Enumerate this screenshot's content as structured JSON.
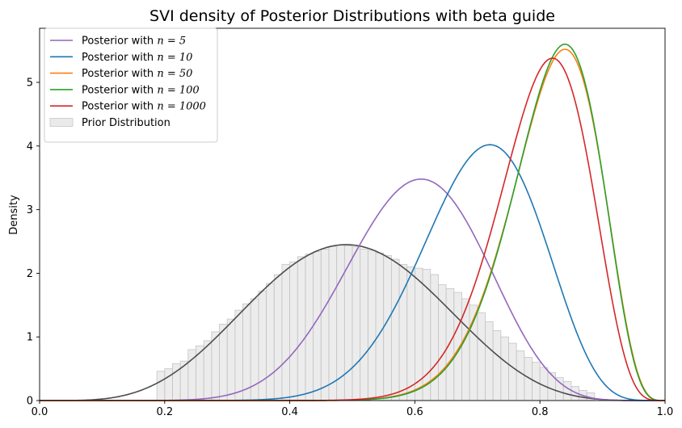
{
  "chart_data": {
    "type": "line",
    "title": "SVI density of Posterior Distributions with beta guide",
    "xlabel": "",
    "ylabel": "Density",
    "xlim": [
      0.0,
      1.0
    ],
    "ylim": [
      0,
      5.85
    ],
    "xticks": [
      0.0,
      0.2,
      0.4,
      0.6,
      0.8,
      1.0
    ],
    "xtick_labels": [
      "0.0",
      "0.2",
      "0.4",
      "0.6",
      "0.8",
      "1.0"
    ],
    "yticks": [
      0,
      1,
      2,
      3,
      4,
      5
    ],
    "ytick_labels": [
      "0",
      "1",
      "2",
      "3",
      "4",
      "5"
    ],
    "grid": false,
    "legend_position": "top-left",
    "series": [
      {
        "name": "Posterior with n = 5",
        "legend_prefix": "Posterior with ",
        "legend_math": "n = 5",
        "color": "#9467bd",
        "mode": 0.61,
        "peak": 3.48
      },
      {
        "name": "Posterior with n = 10",
        "legend_prefix": "Posterior with ",
        "legend_math": "n = 10",
        "color": "#1f77b4",
        "mode": 0.72,
        "peak": 4.02
      },
      {
        "name": "Posterior with n = 50",
        "legend_prefix": "Posterior with ",
        "legend_math": "n = 50",
        "color": "#ff7f0e",
        "mode": 0.84,
        "peak": 5.52
      },
      {
        "name": "Posterior with n = 100",
        "legend_prefix": "Posterior with ",
        "legend_math": "n = 100",
        "color": "#2ca02c",
        "mode": 0.84,
        "peak": 5.6
      },
      {
        "name": "Posterior with n = 1000",
        "legend_prefix": "Posterior with ",
        "legend_math": "n = 1000",
        "color": "#d62728",
        "mode": 0.82,
        "peak": 5.38
      }
    ],
    "prior": {
      "name": "Prior Distribution",
      "fill_color": "#d9d9d9",
      "kde_color": "#4d4d4d",
      "kde_mode": 0.49,
      "kde_peak": 2.45,
      "histogram": {
        "bin_width": 0.0125,
        "bins": [
          [
            0.1875,
            0.46
          ],
          [
            0.2,
            0.5
          ],
          [
            0.2125,
            0.58
          ],
          [
            0.225,
            0.62
          ],
          [
            0.2375,
            0.8
          ],
          [
            0.25,
            0.86
          ],
          [
            0.2625,
            0.94
          ],
          [
            0.275,
            1.08
          ],
          [
            0.2875,
            1.2
          ],
          [
            0.3,
            1.28
          ],
          [
            0.3125,
            1.42
          ],
          [
            0.325,
            1.52
          ],
          [
            0.3375,
            1.6
          ],
          [
            0.35,
            1.72
          ],
          [
            0.3625,
            1.84
          ],
          [
            0.375,
            1.98
          ],
          [
            0.3875,
            2.14
          ],
          [
            0.4,
            2.18
          ],
          [
            0.4125,
            2.26
          ],
          [
            0.425,
            2.3
          ],
          [
            0.4375,
            2.34
          ],
          [
            0.45,
            2.38
          ],
          [
            0.4625,
            2.42
          ],
          [
            0.475,
            2.44
          ],
          [
            0.4875,
            2.43
          ],
          [
            0.5,
            2.42
          ],
          [
            0.5125,
            2.38
          ],
          [
            0.525,
            2.36
          ],
          [
            0.5375,
            2.32
          ],
          [
            0.55,
            2.28
          ],
          [
            0.5625,
            2.22
          ],
          [
            0.575,
            2.14
          ],
          [
            0.5875,
            2.1
          ],
          [
            0.6,
            2.08
          ],
          [
            0.6125,
            2.06
          ],
          [
            0.625,
            1.98
          ],
          [
            0.6375,
            1.82
          ],
          [
            0.65,
            1.76
          ],
          [
            0.6625,
            1.7
          ],
          [
            0.675,
            1.6
          ],
          [
            0.6875,
            1.5
          ],
          [
            0.7,
            1.38
          ],
          [
            0.7125,
            1.24
          ],
          [
            0.725,
            1.1
          ],
          [
            0.7375,
            1.0
          ],
          [
            0.75,
            0.9
          ],
          [
            0.7625,
            0.78
          ],
          [
            0.775,
            0.68
          ],
          [
            0.7875,
            0.6
          ],
          [
            0.8,
            0.52
          ],
          [
            0.8125,
            0.44
          ],
          [
            0.825,
            0.36
          ],
          [
            0.8375,
            0.3
          ],
          [
            0.85,
            0.22
          ],
          [
            0.8625,
            0.16
          ],
          [
            0.875,
            0.12
          ]
        ]
      }
    }
  }
}
